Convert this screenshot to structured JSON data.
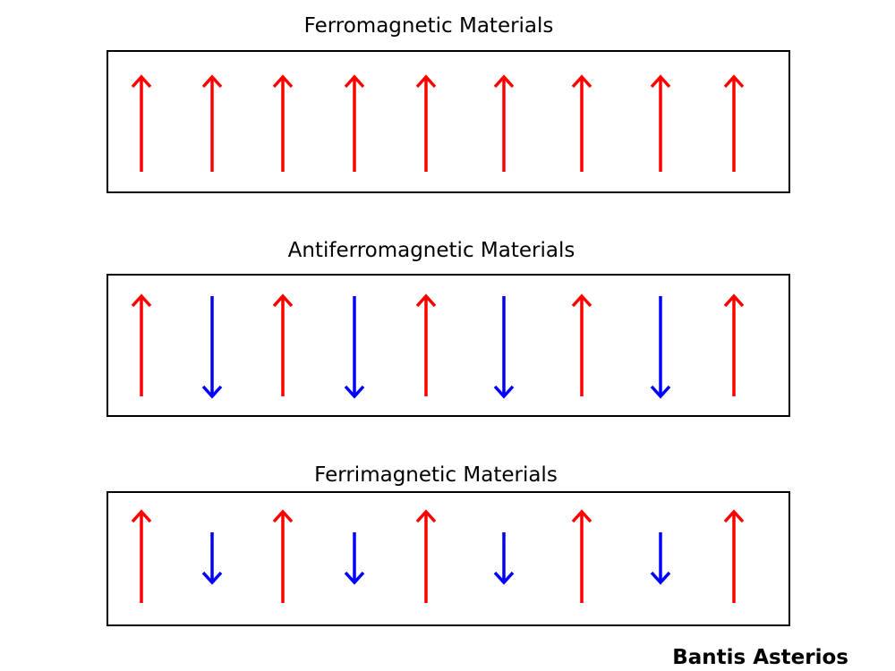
{
  "colors": {
    "up": "#ff0000",
    "down": "#0000ff",
    "frame": "#000000",
    "text": "#000000"
  },
  "panels": [
    {
      "title": "Ferromagnetic Materials",
      "spins": [
        {
          "dir": "up",
          "magnitude": 1
        },
        {
          "dir": "up",
          "magnitude": 1
        },
        {
          "dir": "up",
          "magnitude": 1
        },
        {
          "dir": "up",
          "magnitude": 1
        },
        {
          "dir": "up",
          "magnitude": 1
        },
        {
          "dir": "up",
          "magnitude": 1
        },
        {
          "dir": "up",
          "magnitude": 1
        },
        {
          "dir": "up",
          "magnitude": 1
        },
        {
          "dir": "up",
          "magnitude": 1
        }
      ]
    },
    {
      "title": "Antiferromagnetic Materials",
      "spins": [
        {
          "dir": "up",
          "magnitude": 1
        },
        {
          "dir": "down",
          "magnitude": 1
        },
        {
          "dir": "up",
          "magnitude": 1
        },
        {
          "dir": "down",
          "magnitude": 1
        },
        {
          "dir": "up",
          "magnitude": 1
        },
        {
          "dir": "down",
          "magnitude": 1
        },
        {
          "dir": "up",
          "magnitude": 1
        },
        {
          "dir": "down",
          "magnitude": 1
        },
        {
          "dir": "up",
          "magnitude": 1
        }
      ]
    },
    {
      "title": "Ferrimagnetic Materials",
      "spins": [
        {
          "dir": "up",
          "magnitude": 1
        },
        {
          "dir": "down",
          "magnitude": 0.55
        },
        {
          "dir": "up",
          "magnitude": 1
        },
        {
          "dir": "down",
          "magnitude": 0.55
        },
        {
          "dir": "up",
          "magnitude": 1
        },
        {
          "dir": "down",
          "magnitude": 0.55
        },
        {
          "dir": "up",
          "magnitude": 1
        },
        {
          "dir": "down",
          "magnitude": 0.55
        },
        {
          "dir": "up",
          "magnitude": 1
        }
      ]
    }
  ],
  "author": "Bantis Asterios"
}
